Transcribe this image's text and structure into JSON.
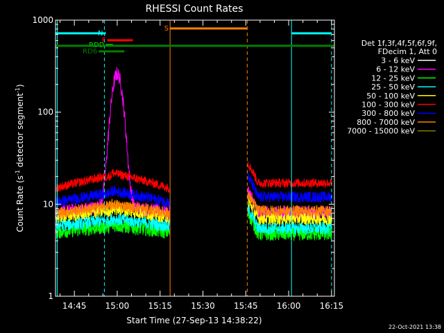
{
  "chart_data": {
    "type": "line",
    "title": "RHESSI Count Rates",
    "xlabel": "Start Time (27-Sep-13 14:38:22)",
    "ylabel_main": "Count Rate (s",
    "ylabel_sup1": "-1",
    "ylabel_mid": " detector segment",
    "ylabel_sup2": "-1",
    "ylabel_end": ")",
    "yscale": "log",
    "ylim": [
      1,
      1000
    ],
    "xlim_min": [
      38.4,
      136.0
    ],
    "xticks": [
      {
        "min": 45,
        "label": "14:45"
      },
      {
        "min": 60,
        "label": "15:00"
      },
      {
        "min": 75,
        "label": "15:15"
      },
      {
        "min": 90,
        "label": "15:30"
      },
      {
        "min": 105,
        "label": "15:45"
      },
      {
        "min": 120,
        "label": "16:00"
      },
      {
        "min": 135,
        "label": "16:15"
      }
    ],
    "yticks": [
      {
        "value": 1,
        "label": "1"
      },
      {
        "value": 10,
        "label": "10"
      },
      {
        "value": 100,
        "label": "100"
      },
      {
        "value": 1000,
        "label": "1000"
      }
    ],
    "legend_header": [
      "Det 1f,3f,4f,5f,6f,9f,",
      "FDecim 1, Att 0"
    ],
    "legend_position": "right",
    "series": [
      {
        "name": "3 - 6 keV",
        "color": "#ffffff"
      },
      {
        "name": "6 - 12 keV",
        "color": "#ff00ff"
      },
      {
        "name": "12 - 25 keV",
        "color": "#00ff00"
      },
      {
        "name": "25 - 50 keV",
        "color": "#00ffff"
      },
      {
        "name": "50 - 100 keV",
        "color": "#ffff00"
      },
      {
        "name": "100 - 300 keV",
        "color": "#ff0000"
      },
      {
        "name": "300 - 800 keV",
        "color": "#0000ff"
      },
      {
        "name": "800 - 7000 keV",
        "color": "#ff8000"
      },
      {
        "name": "7000 - 15000 keV",
        "color": "#808000"
      }
    ],
    "series_profiles": [
      {
        "key": "black",
        "color": "#000000",
        "pre": 3.5,
        "pre_end": 5.0,
        "post": 3.3,
        "post_start": 5.5,
        "peak": 150,
        "peak_min": 60.5,
        "width": 1.1,
        "noise": 0.16
      },
      {
        "key": "magenta",
        "color": "#ff00ff",
        "pre": 8.0,
        "pre_end": 10.0,
        "post": 8.0,
        "post_start": 14.0,
        "peak": 250,
        "peak_min": 60.0,
        "width": 1.7,
        "noise": 0.08
      },
      {
        "key": "green",
        "color": "#00ff00",
        "pre": 5.0,
        "pre_end": 6.0,
        "post": 4.8,
        "post_start": 8.0,
        "peak": 0,
        "peak_min": 60,
        "width": 1,
        "noise": 0.08
      },
      {
        "key": "cyan",
        "color": "#00ffff",
        "pre": 5.8,
        "pre_end": 7.0,
        "post": 5.5,
        "post_start": 9.0,
        "peak": 0,
        "peak_min": 60,
        "width": 1,
        "noise": 0.07
      },
      {
        "key": "yellow",
        "color": "#ffff00",
        "pre": 7.2,
        "pre_end": 9.0,
        "post": 7.0,
        "post_start": 11.0,
        "peak": 0,
        "peak_min": 60,
        "width": 1,
        "noise": 0.07
      },
      {
        "key": "orange",
        "color": "#ff8000",
        "pre": 8.0,
        "pre_end": 10.0,
        "post": 8.5,
        "post_start": 12.5,
        "peak": 0,
        "peak_min": 60,
        "width": 1,
        "noise": 0.06
      },
      {
        "key": "blue",
        "color": "#0000ff",
        "pre": 10.5,
        "pre_end": 14.0,
        "post": 12.0,
        "post_start": 20.0,
        "peak": 0,
        "peak_min": 60,
        "width": 1,
        "noise": 0.06
      },
      {
        "key": "red",
        "color": "#ff0000",
        "pre": 15.0,
        "pre_end": 22.0,
        "post": 17.0,
        "post_start": 28.0,
        "peak": 0,
        "peak_min": 60,
        "width": 1,
        "noise": 0.05
      }
    ],
    "data_gap_min": [
      78.5,
      105.5
    ],
    "vlines": [
      {
        "min": 39.0,
        "color": "#00ffff",
        "style": "solid"
      },
      {
        "min": 55.5,
        "color": "#00ffff",
        "style": "dashed"
      },
      {
        "min": 78.5,
        "color": "#ff8000",
        "style": "solid"
      },
      {
        "min": 105.5,
        "color": "#ff8000",
        "style": "dashed"
      },
      {
        "min": 121.0,
        "color": "#00ffff",
        "style": "solid"
      },
      {
        "min": 135.0,
        "color": "#00ffff",
        "style": "dashed"
      }
    ],
    "flag_bars": [
      {
        "label": "",
        "color": "#00ffff",
        "start": 38.4,
        "end": 55.5,
        "y": 1
      },
      {
        "label": "N",
        "color": "#00ffff",
        "start": 55.5,
        "end": 56.0,
        "y": 1
      },
      {
        "label": "",
        "color": "#00ffff",
        "start": 121.0,
        "end": 135.0,
        "y": 1
      },
      {
        "label": "S",
        "color": "#ff8000",
        "start": 78.5,
        "end": 105.5,
        "y": 0
      },
      {
        "label": "F",
        "color": "#ff0000",
        "start": 56.5,
        "end": 65.5,
        "y": 2
      },
      {
        "label": "RDD",
        "color": "#00ff00",
        "start": 56.0,
        "end": 58.5,
        "y": 3
      },
      {
        "label": "",
        "color": "#008000",
        "start": 38.4,
        "end": 136.0,
        "y": 4
      },
      {
        "label": "RD6",
        "color": "#008000",
        "start": 53.5,
        "end": 62.5,
        "y": 5
      }
    ],
    "footer_date": "22-Oct-2021 13:38"
  }
}
